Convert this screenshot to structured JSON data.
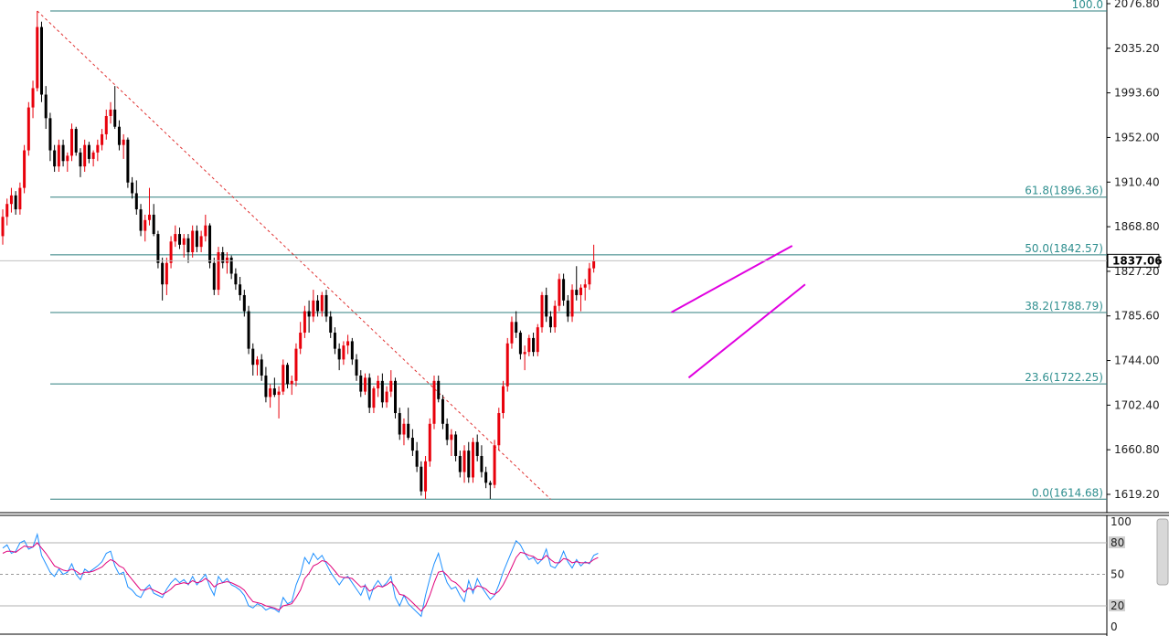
{
  "chart_data": [
    {
      "type": "candlestick",
      "title": "",
      "ylim": [
        1600,
        2085
      ],
      "y_ticks": [
        "2076.80",
        "2035.20",
        "1993.60",
        "1952.00",
        "1910.40",
        "1868.80",
        "1827.20",
        "1785.60",
        "1744.00",
        "1702.40",
        "1660.80",
        "1619.20"
      ],
      "current_price": "1837.06",
      "colors": {
        "up": "#e8000b",
        "down": "#000000",
        "fib_line": "#2f7f7f",
        "fib_text": "#2f8f8f",
        "channel": "#e000e0",
        "trend": "#e03030"
      },
      "fibonacci": {
        "high": 2070.0,
        "low": 1614.68,
        "levels": [
          {
            "label": "100.0",
            "price": 2070.0
          },
          {
            "label": "61.8(1896.36)",
            "price": 1896.36
          },
          {
            "label": "50.0(1842.57)",
            "price": 1842.57
          },
          {
            "label": "38.2(1788.79)",
            "price": 1788.79
          },
          {
            "label": "23.6(1722.25)",
            "price": 1722.25
          },
          {
            "label": "0.0(1614.68)",
            "price": 1614.68
          }
        ]
      },
      "trendline": {
        "from_index": 8,
        "from_price": 2070,
        "to_index": 127,
        "to_price": 1614.68
      },
      "channel": {
        "upper": {
          "from_index": 155,
          "from_price": 1789,
          "to_index": 183,
          "to_price": 1851
        },
        "lower": {
          "from_index": 159,
          "from_price": 1728,
          "to_index": 186,
          "to_price": 1815
        }
      },
      "candles": [
        [
          1860,
          1885,
          1852,
          1878
        ],
        [
          1878,
          1895,
          1870,
          1890
        ],
        [
          1890,
          1905,
          1882,
          1898
        ],
        [
          1898,
          1902,
          1880,
          1885
        ],
        [
          1885,
          1910,
          1880,
          1905
        ],
        [
          1905,
          1945,
          1900,
          1940
        ],
        [
          1940,
          1985,
          1935,
          1980
        ],
        [
          1980,
          2005,
          1970,
          1998
        ],
        [
          1998,
          2070,
          1995,
          2055
        ],
        [
          2055,
          2060,
          1985,
          1992
        ],
        [
          1992,
          2000,
          1960,
          1970
        ],
        [
          1970,
          1975,
          1930,
          1940
        ],
        [
          1940,
          1945,
          1920,
          1925
        ],
        [
          1925,
          1950,
          1920,
          1945
        ],
        [
          1945,
          1950,
          1925,
          1930
        ],
        [
          1930,
          1938,
          1920,
          1935
        ],
        [
          1935,
          1965,
          1930,
          1960
        ],
        [
          1960,
          1962,
          1935,
          1938
        ],
        [
          1938,
          1942,
          1915,
          1925
        ],
        [
          1925,
          1950,
          1920,
          1945
        ],
        [
          1945,
          1948,
          1928,
          1932
        ],
        [
          1932,
          1940,
          1925,
          1938
        ],
        [
          1938,
          1950,
          1930,
          1945
        ],
        [
          1945,
          1960,
          1940,
          1955
        ],
        [
          1955,
          1978,
          1950,
          1972
        ],
        [
          1972,
          1985,
          1965,
          1978
        ],
        [
          1978,
          2000,
          1960,
          1962
        ],
        [
          1962,
          1968,
          1940,
          1945
        ],
        [
          1945,
          1955,
          1932,
          1950
        ],
        [
          1950,
          1952,
          1905,
          1910
        ],
        [
          1910,
          1915,
          1895,
          1900
        ],
        [
          1900,
          1912,
          1880,
          1885
        ],
        [
          1885,
          1890,
          1860,
          1865
        ],
        [
          1865,
          1880,
          1855,
          1875
        ],
        [
          1875,
          1905,
          1870,
          1880
        ],
        [
          1880,
          1890,
          1860,
          1862
        ],
        [
          1862,
          1865,
          1830,
          1835
        ],
        [
          1835,
          1840,
          1800,
          1815
        ],
        [
          1815,
          1840,
          1805,
          1835
        ],
        [
          1835,
          1860,
          1830,
          1855
        ],
        [
          1855,
          1870,
          1850,
          1862
        ],
        [
          1862,
          1868,
          1848,
          1852
        ],
        [
          1852,
          1862,
          1840,
          1858
        ],
        [
          1858,
          1862,
          1835,
          1845
        ],
        [
          1845,
          1870,
          1840,
          1865
        ],
        [
          1865,
          1870,
          1845,
          1850
        ],
        [
          1850,
          1865,
          1845,
          1860
        ],
        [
          1860,
          1880,
          1855,
          1870
        ],
        [
          1870,
          1872,
          1830,
          1835
        ],
        [
          1835,
          1840,
          1805,
          1810
        ],
        [
          1810,
          1850,
          1805,
          1845
        ],
        [
          1845,
          1850,
          1830,
          1835
        ],
        [
          1835,
          1845,
          1825,
          1840
        ],
        [
          1840,
          1842,
          1820,
          1825
        ],
        [
          1825,
          1830,
          1810,
          1815
        ],
        [
          1815,
          1822,
          1800,
          1805
        ],
        [
          1805,
          1810,
          1785,
          1790
        ],
        [
          1790,
          1795,
          1750,
          1755
        ],
        [
          1755,
          1760,
          1730,
          1740
        ],
        [
          1740,
          1748,
          1730,
          1745
        ],
        [
          1745,
          1750,
          1725,
          1730
        ],
        [
          1730,
          1738,
          1705,
          1710
        ],
        [
          1710,
          1722,
          1700,
          1718
        ],
        [
          1718,
          1728,
          1710,
          1712
        ],
        [
          1712,
          1720,
          1690,
          1715
        ],
        [
          1715,
          1745,
          1712,
          1740
        ],
        [
          1740,
          1742,
          1718,
          1722
        ],
        [
          1722,
          1730,
          1712,
          1725
        ],
        [
          1725,
          1760,
          1720,
          1755
        ],
        [
          1755,
          1780,
          1750,
          1770
        ],
        [
          1770,
          1795,
          1765,
          1790
        ],
        [
          1790,
          1800,
          1770,
          1785
        ],
        [
          1785,
          1810,
          1780,
          1800
        ],
        [
          1800,
          1805,
          1785,
          1790
        ],
        [
          1790,
          1808,
          1785,
          1805
        ],
        [
          1805,
          1810,
          1780,
          1785
        ],
        [
          1785,
          1790,
          1765,
          1770
        ],
        [
          1770,
          1775,
          1750,
          1755
        ],
        [
          1755,
          1760,
          1735,
          1745
        ],
        [
          1745,
          1762,
          1740,
          1758
        ],
        [
          1758,
          1768,
          1750,
          1762
        ],
        [
          1762,
          1765,
          1740,
          1745
        ],
        [
          1745,
          1750,
          1725,
          1730
        ],
        [
          1730,
          1735,
          1710,
          1715
        ],
        [
          1715,
          1732,
          1712,
          1728
        ],
        [
          1728,
          1732,
          1695,
          1700
        ],
        [
          1700,
          1720,
          1695,
          1718
        ],
        [
          1718,
          1730,
          1710,
          1725
        ],
        [
          1725,
          1732,
          1700,
          1705
        ],
        [
          1705,
          1720,
          1700,
          1715
        ],
        [
          1715,
          1735,
          1710,
          1725
        ],
        [
          1725,
          1728,
          1690,
          1695
        ],
        [
          1695,
          1700,
          1670,
          1675
        ],
        [
          1675,
          1690,
          1665,
          1685
        ],
        [
          1685,
          1700,
          1670,
          1672
        ],
        [
          1672,
          1680,
          1655,
          1660
        ],
        [
          1660,
          1668,
          1640,
          1645
        ],
        [
          1645,
          1650,
          1618,
          1622
        ],
        [
          1622,
          1655,
          1615,
          1650
        ],
        [
          1650,
          1690,
          1645,
          1685
        ],
        [
          1685,
          1730,
          1680,
          1725
        ],
        [
          1725,
          1730,
          1705,
          1708
        ],
        [
          1708,
          1712,
          1680,
          1685
        ],
        [
          1685,
          1690,
          1665,
          1670
        ],
        [
          1670,
          1680,
          1655,
          1675
        ],
        [
          1675,
          1678,
          1650,
          1655
        ],
        [
          1655,
          1660,
          1635,
          1640
        ],
        [
          1640,
          1665,
          1630,
          1660
        ],
        [
          1660,
          1668,
          1630,
          1635
        ],
        [
          1635,
          1672,
          1630,
          1668
        ],
        [
          1668,
          1675,
          1650,
          1655
        ],
        [
          1655,
          1665,
          1635,
          1640
        ],
        [
          1640,
          1645,
          1625,
          1630
        ],
        [
          1630,
          1632,
          1615,
          1628
        ],
        [
          1628,
          1670,
          1625,
          1665
        ],
        [
          1665,
          1700,
          1660,
          1695
        ],
        [
          1695,
          1725,
          1690,
          1720
        ],
        [
          1720,
          1765,
          1715,
          1760
        ],
        [
          1760,
          1785,
          1755,
          1780
        ],
        [
          1780,
          1790,
          1765,
          1770
        ],
        [
          1770,
          1772,
          1745,
          1750
        ],
        [
          1750,
          1758,
          1735,
          1752
        ],
        [
          1752,
          1768,
          1748,
          1765
        ],
        [
          1765,
          1770,
          1748,
          1752
        ],
        [
          1752,
          1778,
          1748,
          1775
        ],
        [
          1775,
          1808,
          1770,
          1805
        ],
        [
          1805,
          1812,
          1780,
          1785
        ],
        [
          1785,
          1790,
          1770,
          1775
        ],
        [
          1775,
          1800,
          1770,
          1795
        ],
        [
          1795,
          1825,
          1790,
          1820
        ],
        [
          1820,
          1825,
          1795,
          1800
        ],
        [
          1800,
          1805,
          1780,
          1785
        ],
        [
          1785,
          1815,
          1780,
          1810
        ],
        [
          1810,
          1832,
          1800,
          1805
        ],
        [
          1805,
          1815,
          1790,
          1812
        ],
        [
          1812,
          1820,
          1800,
          1815
        ],
        [
          1815,
          1835,
          1810,
          1830
        ],
        [
          1830,
          1852,
          1826,
          1837
        ]
      ]
    },
    {
      "type": "line",
      "title": "",
      "ylim": [
        0,
        100
      ],
      "levels": [
        {
          "label": "80",
          "value": 80
        },
        {
          "label": "20",
          "value": 20
        }
      ],
      "y_ticks": [
        "100",
        "50",
        "0"
      ],
      "colors": {
        "fast": "#1e90ff",
        "slow": "#e0007a"
      },
      "series": [
        {
          "values": [
            75,
            78,
            70,
            72,
            80,
            82,
            74,
            76,
            88,
            68,
            60,
            52,
            48,
            55,
            50,
            52,
            60,
            50,
            45,
            55,
            52,
            55,
            58,
            62,
            70,
            72,
            58,
            50,
            52,
            38,
            35,
            30,
            28,
            36,
            40,
            32,
            30,
            28,
            36,
            42,
            46,
            42,
            45,
            40,
            48,
            40,
            45,
            50,
            38,
            30,
            48,
            42,
            46,
            40,
            38,
            35,
            30,
            20,
            18,
            22,
            20,
            16,
            18,
            17,
            14,
            28,
            22,
            24,
            40,
            50,
            66,
            60,
            70,
            64,
            68,
            60,
            52,
            46,
            40,
            46,
            48,
            42,
            36,
            30,
            40,
            26,
            38,
            44,
            38,
            42,
            48,
            28,
            20,
            30,
            22,
            18,
            14,
            10,
            30,
            46,
            60,
            70,
            54,
            42,
            36,
            38,
            30,
            24,
            44,
            32,
            46,
            38,
            32,
            26,
            30,
            40,
            52,
            62,
            72,
            82,
            78,
            70,
            64,
            66,
            60,
            64,
            74,
            58,
            56,
            62,
            72,
            62,
            56,
            64,
            58,
            62,
            60,
            68,
            70
          ]
        },
        {
          "values": [
            70,
            72,
            72,
            71,
            74,
            77,
            76,
            76,
            80,
            75,
            70,
            64,
            58,
            56,
            54,
            53,
            55,
            53,
            50,
            52,
            52,
            53,
            55,
            57,
            61,
            64,
            62,
            58,
            56,
            50,
            45,
            40,
            35,
            35,
            37,
            35,
            33,
            31,
            33,
            36,
            40,
            41,
            42,
            41,
            44,
            42,
            43,
            46,
            43,
            38,
            41,
            42,
            43,
            42,
            40,
            38,
            35,
            29,
            24,
            23,
            22,
            20,
            19,
            18,
            16,
            20,
            21,
            22,
            28,
            35,
            46,
            51,
            58,
            60,
            63,
            62,
            58,
            53,
            48,
            47,
            47,
            46,
            42,
            38,
            39,
            34,
            36,
            39,
            38,
            40,
            43,
            38,
            31,
            30,
            27,
            23,
            19,
            15,
            20,
            30,
            42,
            52,
            53,
            49,
            44,
            42,
            38,
            33,
            37,
            35,
            39,
            38,
            36,
            32,
            31,
            34,
            40,
            48,
            57,
            66,
            71,
            70,
            68,
            67,
            64,
            64,
            68,
            64,
            61,
            61,
            65,
            64,
            61,
            62,
            61,
            61,
            61,
            64,
            66
          ]
        }
      ]
    }
  ]
}
